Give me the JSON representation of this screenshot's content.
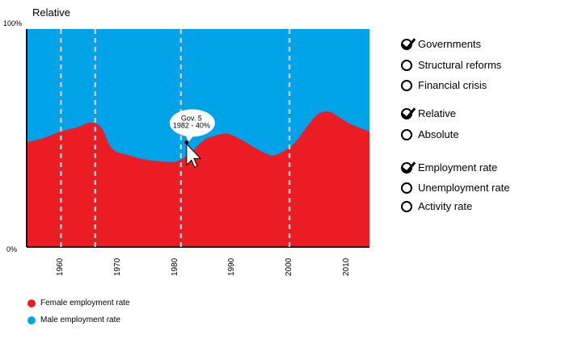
{
  "title": "Relative",
  "colors": {
    "female": "#ec1c24",
    "male": "#00a2e8"
  },
  "chart_data": {
    "type": "area",
    "title": "Relative",
    "ylim": [
      0,
      100
    ],
    "y_tick_labels": [
      "100%",
      "0%"
    ],
    "xlim": [
      1954,
      2014
    ],
    "x_ticks": [
      1960,
      1970,
      1980,
      1990,
      2000,
      2010
    ],
    "vertical_markers": [
      1960,
      1966,
      1981,
      2000
    ],
    "series": [
      {
        "name": "Female employment rate",
        "color": "#ec1c24",
        "x": [
          1954,
          1957,
          1960,
          1963,
          1965,
          1967,
          1969,
          1972,
          1975,
          1979,
          1981,
          1983,
          1985,
          1987,
          1989,
          1991,
          1993,
          1995,
          1997,
          1999,
          2001,
          2003,
          2005,
          2007,
          2009,
          2011,
          2014
        ],
        "y": [
          48,
          50,
          53,
          55,
          57,
          55,
          45,
          42,
          40,
          39,
          40,
          44,
          49,
          51,
          52,
          50,
          47,
          44,
          42,
          44,
          48,
          55,
          61,
          62,
          59,
          56,
          53
        ]
      },
      {
        "name": "Male employment rate",
        "color": "#00a2e8",
        "x": [
          1954,
          2014
        ],
        "y": [
          100,
          100
        ]
      }
    ],
    "annotation": {
      "x": 1982,
      "y": 48,
      "label_line1": "Gov. 5",
      "label_line2": "1982 - 40%"
    },
    "legend": [
      {
        "label": "Female employment rate",
        "color": "#ec1c24"
      },
      {
        "label": "Male employment rate",
        "color": "#00a2e8"
      }
    ]
  },
  "options": [
    {
      "label": "Governments",
      "checked": true
    },
    {
      "label": "Structural reforms",
      "checked": false
    },
    {
      "label": "Financial crisis",
      "checked": false
    },
    {
      "label": "Relative",
      "checked": true
    },
    {
      "label": "Absolute",
      "checked": false
    },
    {
      "label": "Employment rate",
      "checked": true
    },
    {
      "label": "Unemployment rate",
      "checked": false
    },
    {
      "label": "Activity rate",
      "checked": false
    }
  ]
}
